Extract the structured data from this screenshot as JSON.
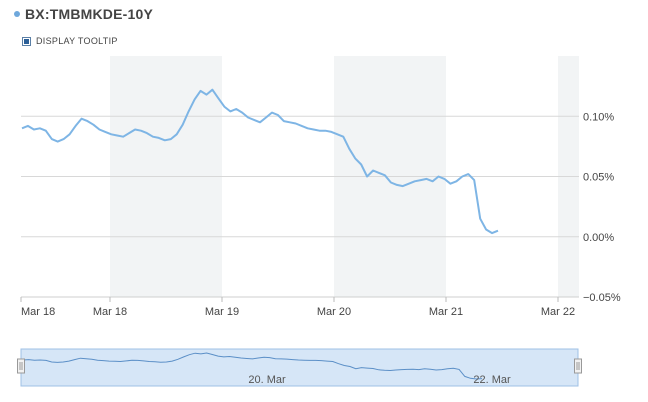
{
  "header": {
    "title": "BX:TMBMKDE-10Y",
    "tooltip_toggle_label": "DISPLAY TOOLTIP",
    "tooltip_checked": true
  },
  "colors": {
    "series": "#7eb5e5",
    "band": "#f2f4f5",
    "grid": "#d8d8d8",
    "navigator_fill": "#d6e6f7",
    "navigator_border": "#9fc0e6"
  },
  "chart_data": {
    "type": "line",
    "title": "BX:TMBMKDE-10Y",
    "xlabel": "",
    "ylabel": "",
    "ylim": [
      -0.05,
      0.15
    ],
    "y_ticks": [
      {
        "value": 0.1,
        "label": "0.10%"
      },
      {
        "value": 0.05,
        "label": "0.05%"
      },
      {
        "value": 0.0,
        "label": "0.00%"
      },
      {
        "value": -0.05,
        "label": "−0.05%"
      }
    ],
    "x_tick_labels": [
      "Mar 18",
      "Mar 18",
      "Mar 19",
      "Mar 20",
      "Mar 21",
      "Mar 22"
    ],
    "grid": true,
    "series": [
      {
        "values": [
          0.09,
          0.092,
          0.089,
          0.09,
          0.088,
          0.081,
          0.079,
          0.081,
          0.085,
          0.092,
          0.098,
          0.096,
          0.093,
          0.089,
          0.087,
          0.085,
          0.084,
          0.083,
          0.086,
          0.089,
          0.088,
          0.086,
          0.083,
          0.082,
          0.08,
          0.081,
          0.085,
          0.093,
          0.104,
          0.114,
          0.121,
          0.118,
          0.122,
          0.115,
          0.108,
          0.104,
          0.106,
          0.103,
          0.099,
          0.097,
          0.095,
          0.099,
          0.103,
          0.101,
          0.096,
          0.095,
          0.094,
          0.092,
          0.09,
          0.089,
          0.088,
          0.088,
          0.087,
          0.085,
          0.083,
          0.073,
          0.065,
          0.06,
          0.05,
          0.055,
          0.053,
          0.051,
          0.045,
          0.043,
          0.042,
          0.044,
          0.046,
          0.047,
          0.048,
          0.046,
          0.05,
          0.048,
          0.044,
          0.046,
          0.05,
          0.052,
          0.047,
          0.015,
          0.006,
          0.003,
          0.005
        ]
      }
    ]
  },
  "navigator": {
    "labels": [
      "20. Mar",
      "22. Mar"
    ]
  }
}
